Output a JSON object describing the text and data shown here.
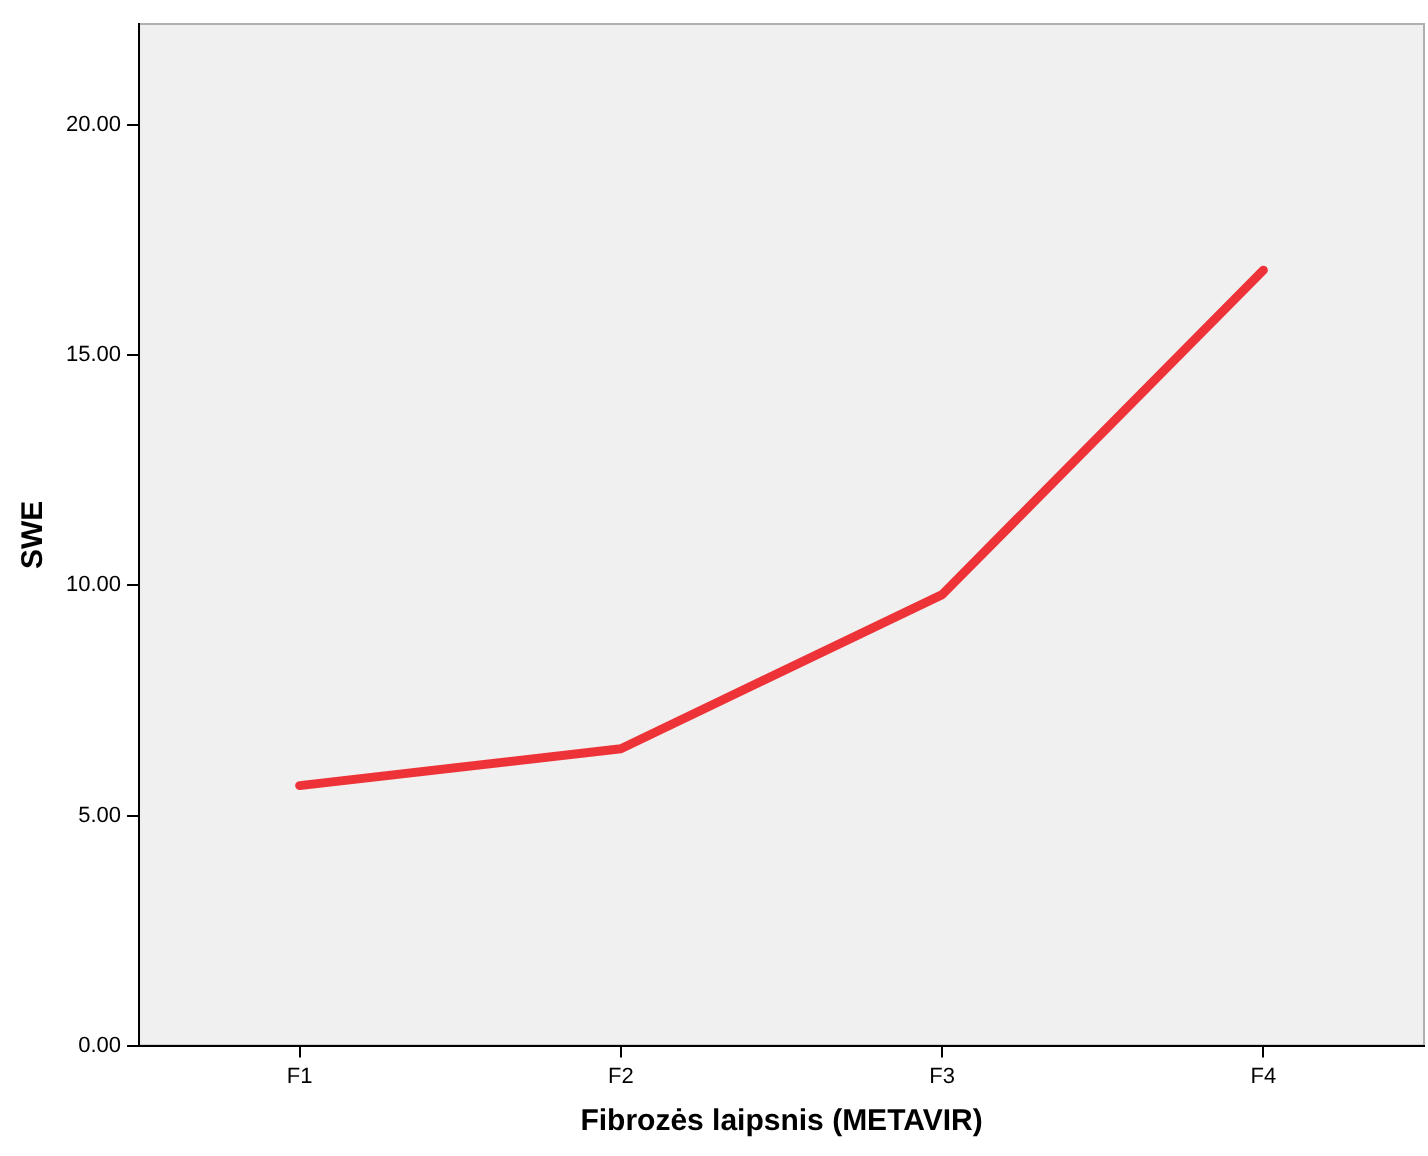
{
  "chart_data": {
    "type": "line",
    "xlabel": "Fibrozės laipsnis (METAVIR)",
    "ylabel": "SWE",
    "categories": [
      "F1",
      "F2",
      "F3",
      "F4"
    ],
    "series": [
      {
        "color": "#ee3338",
        "values": [
          5.65,
          6.45,
          9.8,
          16.85
        ]
      }
    ],
    "ylim": [
      0,
      22.2
    ],
    "yticks": [
      {
        "value": 0,
        "label": "0.00"
      },
      {
        "value": 5,
        "label": "5.00"
      },
      {
        "value": 10,
        "label": "10.00"
      },
      {
        "value": 15,
        "label": "15.00"
      },
      {
        "value": 20,
        "label": "20.00"
      }
    ],
    "grid": false,
    "legend": false,
    "marker": "none",
    "line_style": "solid"
  }
}
